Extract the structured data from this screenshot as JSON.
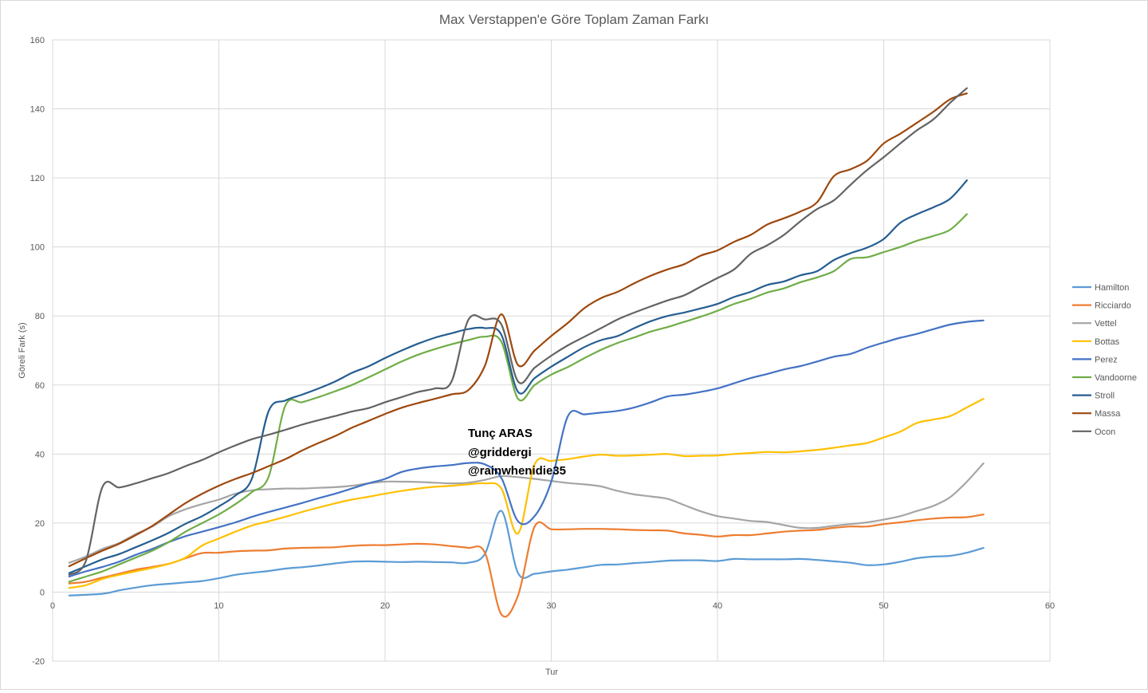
{
  "chart_data": {
    "type": "line",
    "title": "Max Verstappen'e Göre Toplam Zaman Farkı",
    "xlabel": "Tur",
    "ylabel": "Göreli Fark (s)",
    "xlim": [
      0,
      60
    ],
    "ylim": [
      -20,
      160
    ],
    "xticks": [
      0,
      10,
      20,
      30,
      40,
      50,
      60
    ],
    "yticks": [
      -20,
      0,
      20,
      40,
      60,
      80,
      100,
      120,
      140,
      160
    ],
    "grid": true,
    "legend": "right",
    "annotation": [
      "Tunç ARAS",
      "@griddergi",
      "@rainwhenidie35"
    ],
    "series": [
      {
        "name": "Hamilton",
        "color": "#5b9bd5",
        "x": [
          1,
          3,
          4,
          5,
          6,
          7,
          8,
          9,
          10,
          11,
          12,
          13,
          14,
          15,
          16,
          17,
          18,
          19,
          20,
          21,
          22,
          23,
          24,
          25,
          26,
          27,
          28,
          29,
          30,
          31,
          32,
          33,
          34,
          35,
          36,
          37,
          38,
          39,
          40,
          41,
          42,
          43,
          44,
          45,
          46,
          47,
          48,
          49,
          50,
          51,
          52,
          53,
          54,
          55,
          56
        ],
        "y": [
          -1,
          -0.5,
          0.5,
          1.3,
          2,
          2.4,
          2.8,
          3.2,
          4,
          5,
          5.6,
          6.1,
          6.8,
          7.2,
          7.7,
          8.3,
          8.8,
          8.9,
          8.8,
          8.7,
          8.8,
          8.7,
          8.6,
          8.5,
          11,
          23.5,
          5.5,
          5.3,
          6,
          6.5,
          7.2,
          7.9,
          8,
          8.4,
          8.7,
          9.1,
          9.2,
          9.2,
          9,
          9.6,
          9.5,
          9.5,
          9.5,
          9.6,
          9.3,
          8.9,
          8.5,
          7.8,
          8,
          8.8,
          9.8,
          10.3,
          10.5,
          11.4,
          12.8
        ]
      },
      {
        "name": "Ricciardo",
        "color": "#ed7d31",
        "x": [
          1,
          2,
          3,
          4,
          5,
          6,
          7,
          8,
          9,
          10,
          11,
          12,
          13,
          14,
          15,
          16,
          17,
          18,
          19,
          20,
          21,
          22,
          23,
          24,
          25,
          26,
          27,
          28,
          29,
          30,
          31,
          32,
          33,
          34,
          35,
          36,
          37,
          38,
          39,
          40,
          41,
          42,
          43,
          44,
          45,
          46,
          47,
          48,
          49,
          50,
          51,
          52,
          53,
          54,
          55,
          56
        ],
        "y": [
          2.5,
          3,
          4.2,
          5.3,
          6.5,
          7.3,
          8.2,
          9.8,
          11.3,
          11.4,
          11.8,
          12,
          12.1,
          12.6,
          12.8,
          12.9,
          13,
          13.4,
          13.6,
          13.6,
          13.8,
          14,
          13.8,
          13.3,
          12.8,
          11.5,
          -6.5,
          -1,
          19,
          18.2,
          18.2,
          18.3,
          18.3,
          18.2,
          18,
          17.9,
          17.8,
          17,
          16.6,
          16.1,
          16.5,
          16.5,
          17,
          17.5,
          17.8,
          18,
          18.6,
          19,
          19,
          19.7,
          20.2,
          20.8,
          21.3,
          21.6,
          21.7,
          22.5
        ]
      },
      {
        "name": "Vettel",
        "color": "#a5a5a5",
        "x": [
          1,
          2,
          3,
          4,
          5,
          6,
          7,
          8,
          9,
          10,
          11,
          12,
          13,
          14,
          15,
          16,
          17,
          18,
          19,
          20,
          21,
          22,
          23,
          24,
          25,
          26,
          27,
          28,
          29,
          30,
          31,
          32,
          33,
          34,
          35,
          36,
          37,
          38,
          39,
          40,
          41,
          42,
          43,
          44,
          45,
          46,
          47,
          48,
          49,
          50,
          51,
          52,
          53,
          54,
          55,
          56
        ],
        "y": [
          8.5,
          10.3,
          12.5,
          14.2,
          16.8,
          19,
          22,
          24,
          25.5,
          26.8,
          28.5,
          29.5,
          29.8,
          30,
          30,
          30.2,
          30.4,
          30.8,
          31.5,
          32,
          32,
          31.9,
          31.7,
          31.5,
          31.7,
          32.5,
          33.6,
          33.3,
          32.8,
          32.2,
          31.6,
          31.2,
          30.6,
          29.3,
          28.3,
          27.7,
          27,
          25.2,
          23.4,
          22,
          21.3,
          20.6,
          20.3,
          19.4,
          18.6,
          18.6,
          19.2,
          19.7,
          20.2,
          21,
          22,
          23.5,
          25,
          27.5,
          32,
          37.3
        ]
      },
      {
        "name": "Bottas",
        "color": "#ffc000",
        "x": [
          1,
          2,
          3,
          4,
          5,
          6,
          7,
          8,
          9,
          10,
          11,
          12,
          13,
          14,
          15,
          16,
          17,
          18,
          19,
          20,
          21,
          22,
          23,
          24,
          25,
          26,
          27,
          28,
          29,
          30,
          31,
          32,
          33,
          34,
          35,
          36,
          37,
          38,
          39,
          40,
          41,
          42,
          43,
          44,
          45,
          46,
          47,
          48,
          49,
          50,
          51,
          52,
          53,
          54,
          55,
          56
        ],
        "y": [
          1.2,
          2,
          3.8,
          5,
          6,
          7,
          8.2,
          10,
          13.5,
          15.5,
          17.5,
          19.3,
          20.5,
          21.8,
          23.2,
          24.5,
          25.7,
          26.8,
          27.6,
          28.5,
          29.3,
          30,
          30.5,
          30.8,
          31.2,
          31.5,
          30,
          17,
          37,
          38,
          38.5,
          39.3,
          39.8,
          39.5,
          39.6,
          39.8,
          40,
          39.4,
          39.5,
          39.6,
          40,
          40.3,
          40.6,
          40.5,
          40.8,
          41.2,
          41.8,
          42.5,
          43.2,
          44.8,
          46.5,
          49,
          50,
          51,
          53.5,
          56
        ]
      },
      {
        "name": "Perez",
        "color": "#4472c4",
        "x": [
          1,
          2,
          3,
          4,
          5,
          6,
          7,
          8,
          9,
          10,
          11,
          12,
          13,
          14,
          15,
          16,
          17,
          18,
          19,
          20,
          21,
          22,
          23,
          24,
          25,
          26,
          27,
          28,
          29,
          30,
          31,
          32,
          33,
          34,
          35,
          36,
          37,
          38,
          39,
          40,
          41,
          42,
          43,
          44,
          45,
          46,
          47,
          48,
          49,
          50,
          51,
          52,
          53,
          54,
          55,
          56
        ],
        "y": [
          4.5,
          6,
          7.3,
          8.8,
          10.8,
          12.5,
          14.5,
          16.2,
          17.5,
          18.8,
          20.2,
          21.8,
          23.2,
          24.5,
          25.8,
          27.2,
          28.5,
          30,
          31.5,
          32.8,
          34.8,
          35.8,
          36.4,
          36.8,
          37.4,
          37,
          33,
          20.5,
          22,
          32,
          51,
          51.5,
          52,
          52.5,
          53.5,
          55,
          56.7,
          57.2,
          58,
          59,
          60.5,
          62,
          63.2,
          64.5,
          65.5,
          66.8,
          68.2,
          69,
          70.8,
          72.3,
          73.7,
          74.8,
          76.2,
          77.5,
          78.3,
          78.7
        ]
      },
      {
        "name": "Vandoorne",
        "color": "#70ad47",
        "x": [
          1,
          2,
          3,
          4,
          5,
          6,
          7,
          8,
          9,
          10,
          11,
          12,
          13,
          14,
          15,
          16,
          17,
          18,
          19,
          20,
          21,
          22,
          23,
          24,
          25,
          26,
          27,
          28,
          29,
          30,
          31,
          32,
          33,
          34,
          35,
          36,
          37,
          38,
          39,
          40,
          41,
          42,
          43,
          44,
          45,
          46,
          47,
          48,
          49,
          50,
          51,
          52,
          53,
          54,
          55
        ],
        "y": [
          3,
          4.5,
          6,
          8,
          10,
          12,
          14.5,
          17.5,
          20,
          22.5,
          25.5,
          29,
          33.5,
          54,
          55,
          56.5,
          58.2,
          60,
          62.2,
          64.5,
          66.8,
          68.8,
          70.4,
          71.8,
          73,
          74,
          72.5,
          56,
          60,
          63,
          65.2,
          67.8,
          70.2,
          72.2,
          73.8,
          75.5,
          76.8,
          78.3,
          79.8,
          81.5,
          83.5,
          85,
          86.8,
          88,
          89.8,
          91.2,
          93,
          96.5,
          97,
          98.5,
          100,
          101.8,
          103.2,
          105,
          109.5
        ]
      },
      {
        "name": "Stroll",
        "color": "#255e91",
        "x": [
          1,
          2,
          3,
          4,
          5,
          6,
          7,
          8,
          9,
          10,
          11,
          12,
          13,
          14,
          15,
          16,
          17,
          18,
          19,
          20,
          21,
          22,
          23,
          24,
          25,
          26,
          27,
          28,
          29,
          30,
          31,
          32,
          33,
          34,
          35,
          36,
          37,
          38,
          39,
          40,
          41,
          42,
          43,
          44,
          45,
          46,
          47,
          48,
          49,
          50,
          51,
          52,
          53,
          54,
          55
        ],
        "y": [
          5.5,
          7.5,
          9.5,
          11,
          13,
          15,
          17.2,
          19.8,
          22,
          24.8,
          28,
          33,
          52.5,
          55.5,
          57.2,
          59,
          61,
          63.5,
          65.4,
          67.8,
          70,
          72,
          73.7,
          75,
          76.2,
          76.5,
          74.5,
          58,
          62,
          65.3,
          68.2,
          71,
          73,
          74.2,
          76.5,
          78.5,
          80,
          81,
          82.2,
          83.5,
          85.5,
          87,
          89,
          90,
          91.8,
          93,
          96.2,
          98.2,
          99.8,
          102.3,
          107,
          109.5,
          111.5,
          114,
          119.3
        ]
      },
      {
        "name": "Massa",
        "color": "#9e480e",
        "x": [
          1,
          2,
          3,
          4,
          5,
          6,
          7,
          8,
          9,
          10,
          11,
          12,
          13,
          14,
          15,
          16,
          17,
          18,
          19,
          20,
          21,
          22,
          23,
          24,
          25,
          26,
          27,
          28,
          29,
          30,
          31,
          32,
          33,
          34,
          35,
          36,
          37,
          38,
          39,
          40,
          41,
          42,
          43,
          44,
          45,
          46,
          47,
          48,
          49,
          50,
          51,
          52,
          53,
          54,
          55
        ],
        "y": [
          7.5,
          9.8,
          12,
          14,
          16.5,
          19.2,
          22.5,
          25.8,
          28.5,
          30.8,
          32.8,
          34.5,
          36.5,
          38.5,
          41,
          43.2,
          45.2,
          47.6,
          49.6,
          51.6,
          53.4,
          54.8,
          56,
          57.3,
          58.5,
          65.5,
          80.5,
          65.8,
          70,
          74.2,
          78,
          82.3,
          85.2,
          87,
          89.5,
          91.7,
          93.5,
          95,
          97.5,
          99,
          101.5,
          103.5,
          106.5,
          108.3,
          110.3,
          113,
          120.5,
          122.5,
          125,
          130,
          132.8,
          136,
          139.2,
          142.8,
          144.5
        ]
      },
      {
        "name": "Ocon",
        "color": "#636363",
        "x": [
          1,
          2,
          3,
          4,
          5,
          6,
          7,
          8,
          9,
          10,
          11,
          12,
          13,
          14,
          15,
          16,
          17,
          18,
          19,
          20,
          21,
          22,
          23,
          24,
          25,
          26,
          27,
          28,
          29,
          30,
          31,
          32,
          33,
          34,
          35,
          36,
          37,
          38,
          39,
          40,
          41,
          42,
          43,
          44,
          45,
          46,
          47,
          48,
          49,
          50,
          51,
          52,
          53,
          54,
          55
        ],
        "y": [
          5,
          9,
          30.5,
          30.3,
          31.5,
          33,
          34.5,
          36.5,
          38.3,
          40.5,
          42.5,
          44.3,
          45.6,
          47,
          48.5,
          49.8,
          51,
          52.3,
          53.3,
          55,
          56.5,
          58,
          59,
          61,
          78.8,
          79,
          77.5,
          61,
          65,
          68.5,
          71.5,
          74,
          76.5,
          79,
          81,
          82.8,
          84.5,
          86,
          88.5,
          91,
          93.5,
          98,
          100.5,
          103.5,
          107.5,
          111,
          113.5,
          118,
          122.3,
          126,
          130,
          133.8,
          137,
          141.8,
          146
        ]
      }
    ]
  }
}
